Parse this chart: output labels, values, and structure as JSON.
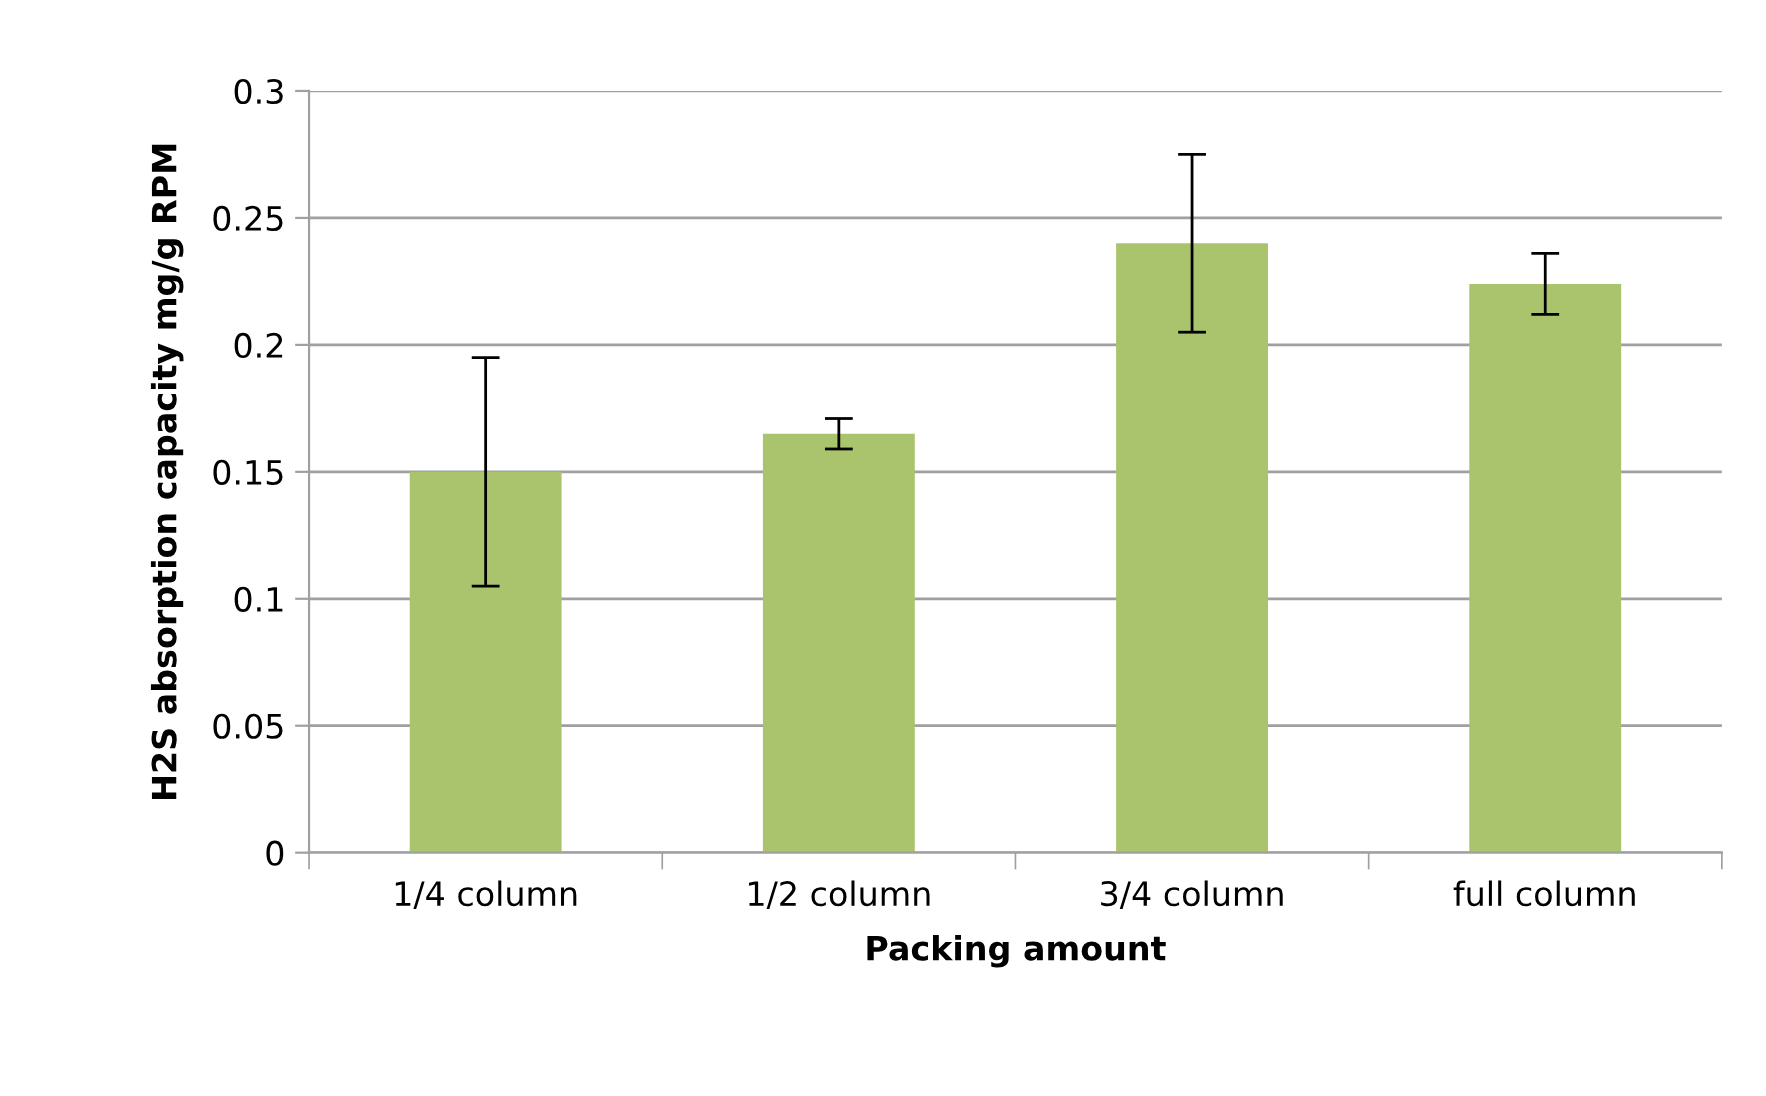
{
  "chart_data": {
    "type": "bar",
    "xlabel": "Packing amount",
    "ylabel": "H2S absorption capacity mg/g RPM",
    "categories": [
      "1/4 column",
      "1/2 column",
      "3/4 column",
      "full column"
    ],
    "values": [
      0.15,
      0.165,
      0.24,
      0.224
    ],
    "errors": [
      0.045,
      0.006,
      0.035,
      0.012
    ],
    "color": "#a9c46c",
    "ylim": [
      0,
      0.3
    ],
    "yticks": [
      {
        "value": 0,
        "label": "0"
      },
      0.05,
      0.1,
      0.15,
      0.2,
      0.25,
      0.3
    ],
    "grid": "y",
    "legend": false
  }
}
